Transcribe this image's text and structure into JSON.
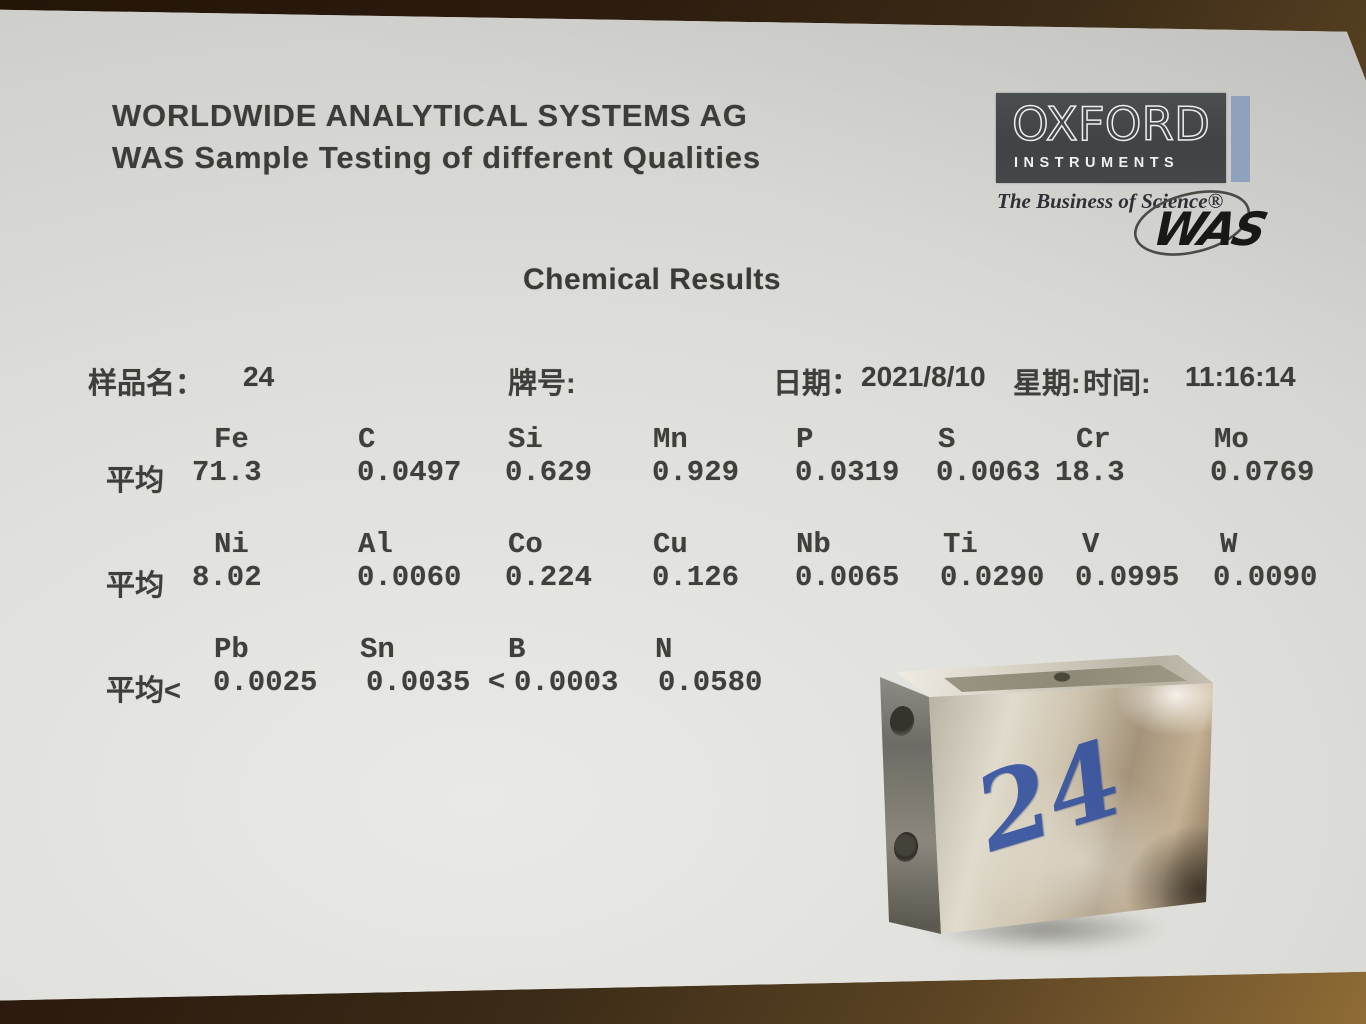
{
  "header": {
    "line1": "WORLDWIDE ANALYTICAL SYSTEMS AG",
    "line2": "WAS Sample Testing of different Qualities"
  },
  "logo": {
    "brand": "OXFORD",
    "sub": "INSTRUMENTS",
    "tagline": "The Business of Science®",
    "emblem": "WAS",
    "colors": {
      "box": "#43474a",
      "bar": "#8fa2bd"
    }
  },
  "title": "Chemical Results",
  "info": {
    "sample_label": "样品名：",
    "sample_value": "24",
    "grade_label": "牌号:",
    "date_label": "日期：",
    "date_value": "2021/8/10",
    "weekday_label": "星期:",
    "time_label": "时间:",
    "time_value": "11:16:14"
  },
  "results": {
    "rows": [
      {
        "row_label": "平均",
        "elements": [
          "Fe",
          "C",
          "Si",
          "Mn",
          "P",
          "S",
          "Cr",
          "Mo"
        ],
        "values": [
          "71.3",
          "0.0497",
          "0.629",
          "0.929",
          "0.0319",
          "0.0063",
          "18.3",
          "0.0769"
        ]
      },
      {
        "row_label": "平均",
        "elements": [
          "Ni",
          "Al",
          "Co",
          "Cu",
          "Nb",
          "Ti",
          "V",
          "W"
        ],
        "values": [
          "8.02",
          "0.0060",
          "0.224",
          "0.126",
          "0.0065",
          "0.0290",
          "0.0995",
          "0.0090"
        ]
      },
      {
        "row_label": "平均<",
        "elements": [
          "Pb",
          "Sn",
          "B",
          "N"
        ],
        "values": [
          "0.0025",
          "0.0035 <",
          "0.0003",
          "0.0580"
        ]
      }
    ]
  },
  "sample_block": {
    "handwritten_label": "24",
    "ink_color": "#2e4d9f"
  }
}
